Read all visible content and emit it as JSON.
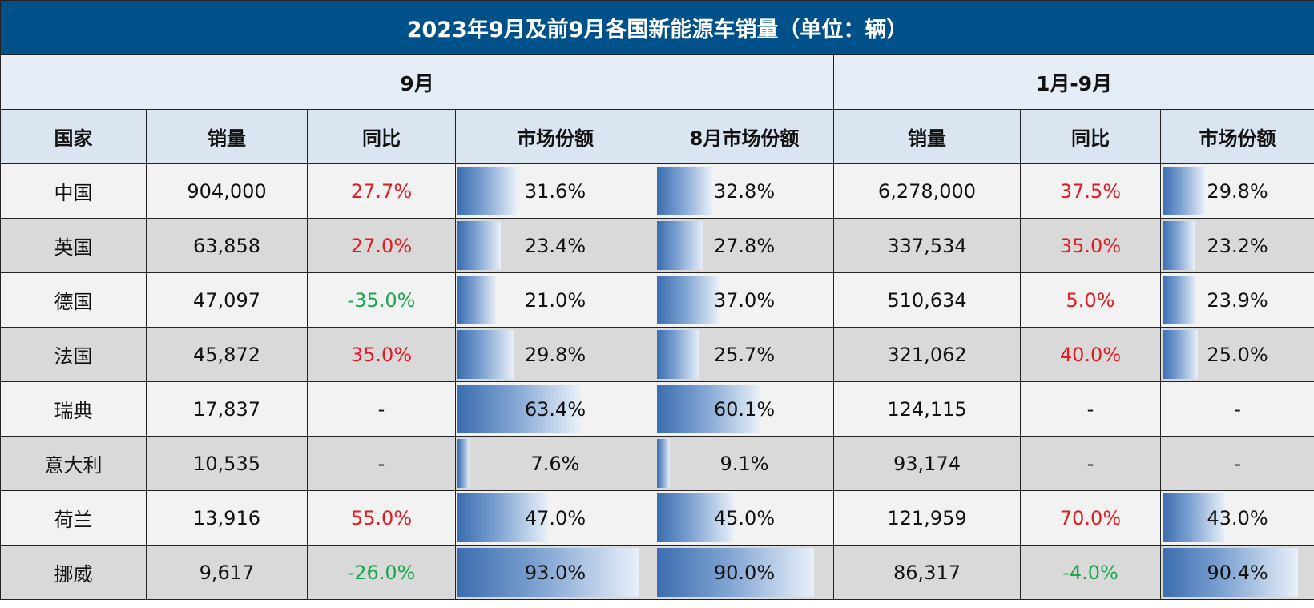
{
  "title": "2023年9月及前9月各国新能源车销量（单位：辆）",
  "groups": {
    "september": "9月",
    "ytd": "1月-9月"
  },
  "headers": [
    "国家",
    "销量",
    "同比",
    "市场份额",
    "8月市场份额",
    "销量",
    "同比",
    "市场份额"
  ],
  "colors": {
    "title_bg": "#00508a",
    "positive": "#e21b23",
    "negative": "#1aa64e",
    "bar": "#3b6db0"
  },
  "rows": [
    {
      "country": "中国",
      "sales": "904,000",
      "yoy": "27.7%",
      "share": "31.6%",
      "aug_share": "32.8%",
      "ytd_sales": "6,278,000",
      "ytd_yoy": "37.5%",
      "ytd_share": "29.8%"
    },
    {
      "country": "英国",
      "sales": "63,858",
      "yoy": "27.0%",
      "share": "23.4%",
      "aug_share": "27.8%",
      "ytd_sales": "337,534",
      "ytd_yoy": "35.0%",
      "ytd_share": "23.2%"
    },
    {
      "country": "德国",
      "sales": "47,097",
      "yoy": "-35.0%",
      "share": "21.0%",
      "aug_share": "37.0%",
      "ytd_sales": "510,634",
      "ytd_yoy": "5.0%",
      "ytd_share": "23.9%"
    },
    {
      "country": "法国",
      "sales": "45,872",
      "yoy": "35.0%",
      "share": "29.8%",
      "aug_share": "25.7%",
      "ytd_sales": "321,062",
      "ytd_yoy": "40.0%",
      "ytd_share": "25.0%"
    },
    {
      "country": "瑞典",
      "sales": "17,837",
      "yoy": "-",
      "share": "63.4%",
      "aug_share": "60.1%",
      "ytd_sales": "124,115",
      "ytd_yoy": "-",
      "ytd_share": "-"
    },
    {
      "country": "意大利",
      "sales": "10,535",
      "yoy": "-",
      "share": "7.6%",
      "aug_share": "9.1%",
      "ytd_sales": "93,174",
      "ytd_yoy": "-",
      "ytd_share": "-"
    },
    {
      "country": "荷兰",
      "sales": "13,916",
      "yoy": "55.0%",
      "share": "47.0%",
      "aug_share": "45.0%",
      "ytd_sales": "121,959",
      "ytd_yoy": "70.0%",
      "ytd_share": "43.0%"
    },
    {
      "country": "挪威",
      "sales": "9,617",
      "yoy": "-26.0%",
      "share": "93.0%",
      "aug_share": "90.0%",
      "ytd_sales": "86,317",
      "ytd_yoy": "-4.0%",
      "ytd_share": "90.4%"
    }
  ]
}
